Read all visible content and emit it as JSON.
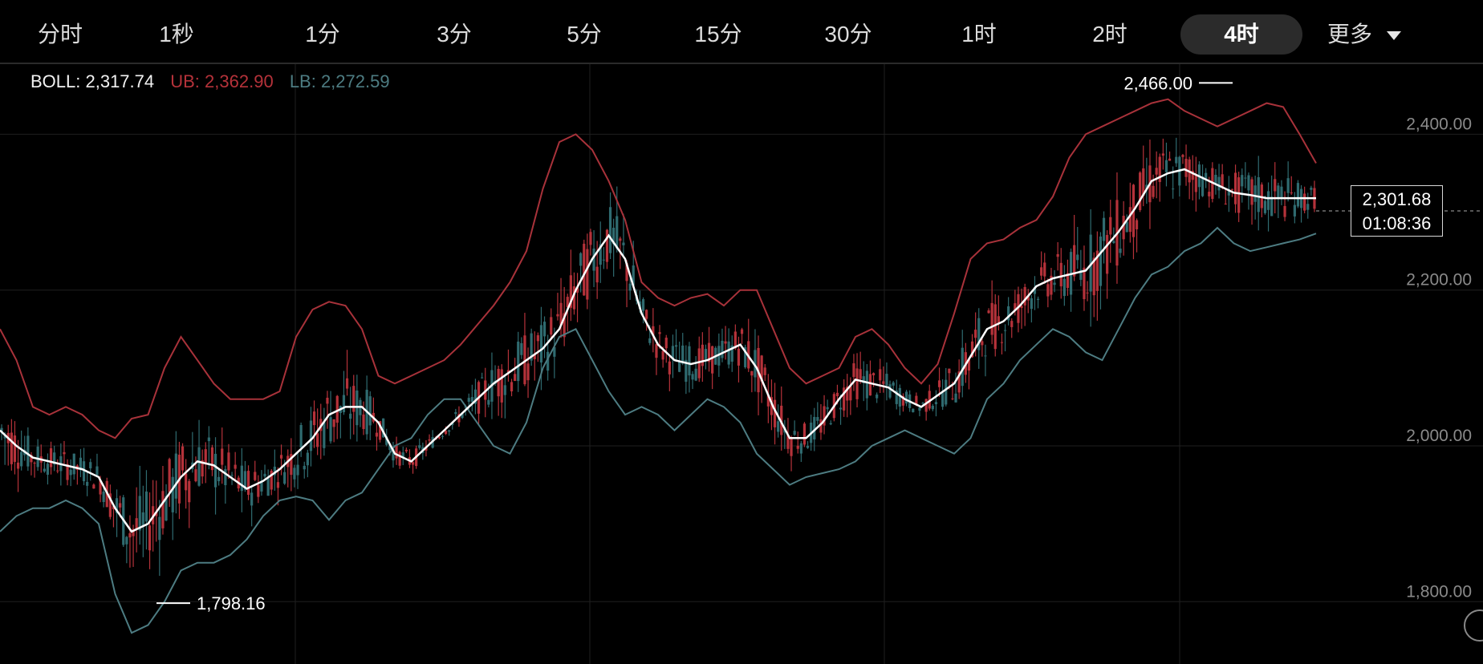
{
  "timeframe_tabs": [
    "分时",
    "1秒",
    "1分",
    "3分",
    "5分",
    "15分",
    "30分",
    "1时",
    "2时",
    "4时"
  ],
  "active_tab": "4时",
  "more_label": "更多",
  "indicator": {
    "boll_label": "BOLL: 2,317.74",
    "ub_label": "UB: 2,362.90",
    "lb_label": "LB: 2,272.59"
  },
  "current_price": {
    "price": "2,301.68",
    "countdown": "01:08:36",
    "value": 2301.68
  },
  "markers": {
    "high": {
      "label": "2,466.00",
      "value": 2466
    },
    "low": {
      "label": "1,798.16",
      "value": 1798.16
    }
  },
  "colors": {
    "up": "#2f6b70",
    "down": "#b5323a",
    "mid": "#ffffff",
    "ub": "#a8323a",
    "lb": "#4d7c82",
    "grid": "#1f1f1f"
  },
  "chart_data": {
    "type": "line",
    "title": "",
    "y_axis": {
      "ticks": [
        "2,400.00",
        "2,200.00",
        "2,000.00",
        "1,800.00"
      ],
      "tick_values": [
        2400,
        2200,
        2000,
        1800
      ],
      "range": [
        1720,
        2490
      ]
    },
    "grid": true,
    "series": [
      {
        "name": "BOLL",
        "x": [
          0,
          5,
          10,
          15,
          20,
          25,
          30,
          35,
          40,
          45,
          50,
          55,
          60,
          65,
          70,
          75,
          80,
          85,
          90,
          95,
          100,
          105,
          110,
          115,
          120,
          125,
          130,
          135,
          140,
          145,
          150,
          155,
          160,
          165,
          170,
          175,
          180,
          185,
          190,
          195,
          200,
          205,
          210,
          215,
          220,
          225,
          230,
          235,
          240,
          245,
          250,
          255,
          260,
          265,
          270,
          275,
          280,
          285,
          290,
          295,
          300,
          305,
          310,
          315,
          320,
          325,
          330,
          335,
          340,
          345,
          350,
          355,
          360,
          365,
          370,
          375,
          380,
          385,
          390,
          395,
          400
        ],
        "values": [
          2020,
          2000,
          1985,
          1980,
          1975,
          1970,
          1960,
          1920,
          1890,
          1900,
          1930,
          1960,
          1980,
          1975,
          1960,
          1945,
          1955,
          1970,
          1990,
          2010,
          2040,
          2050,
          2050,
          2030,
          1990,
          1980,
          2000,
          2020,
          2040,
          2060,
          2080,
          2095,
          2110,
          2125,
          2150,
          2200,
          2240,
          2270,
          2240,
          2170,
          2130,
          2110,
          2105,
          2110,
          2120,
          2130,
          2100,
          2050,
          2010,
          2010,
          2030,
          2060,
          2085,
          2080,
          2075,
          2060,
          2050,
          2065,
          2080,
          2115,
          2150,
          2160,
          2180,
          2205,
          2215,
          2220,
          2225,
          2250,
          2275,
          2305,
          2340,
          2350,
          2355,
          2345,
          2335,
          2325,
          2322,
          2318,
          2318,
          2318,
          2318
        ]
      },
      {
        "name": "UB",
        "x": [
          0,
          5,
          10,
          15,
          20,
          25,
          30,
          35,
          40,
          45,
          50,
          55,
          60,
          65,
          70,
          75,
          80,
          85,
          90,
          95,
          100,
          105,
          110,
          115,
          120,
          125,
          130,
          135,
          140,
          145,
          150,
          155,
          160,
          165,
          170,
          175,
          180,
          185,
          190,
          195,
          200,
          205,
          210,
          215,
          220,
          225,
          230,
          235,
          240,
          245,
          250,
          255,
          260,
          265,
          270,
          275,
          280,
          285,
          290,
          295,
          300,
          305,
          310,
          315,
          320,
          325,
          330,
          335,
          340,
          345,
          350,
          355,
          360,
          365,
          370,
          375,
          380,
          385,
          390,
          395,
          400
        ],
        "values": [
          2150,
          2110,
          2050,
          2040,
          2050,
          2040,
          2020,
          2010,
          2035,
          2040,
          2100,
          2140,
          2110,
          2080,
          2060,
          2060,
          2060,
          2070,
          2140,
          2175,
          2185,
          2180,
          2150,
          2090,
          2080,
          2090,
          2100,
          2110,
          2130,
          2155,
          2180,
          2210,
          2250,
          2330,
          2390,
          2400,
          2380,
          2340,
          2290,
          2210,
          2190,
          2180,
          2190,
          2195,
          2180,
          2200,
          2200,
          2150,
          2100,
          2080,
          2090,
          2100,
          2140,
          2150,
          2130,
          2100,
          2080,
          2105,
          2170,
          2240,
          2260,
          2265,
          2280,
          2290,
          2320,
          2370,
          2400,
          2410,
          2420,
          2430,
          2440,
          2445,
          2430,
          2420,
          2410,
          2420,
          2430,
          2440,
          2435,
          2400,
          2362.9
        ]
      },
      {
        "name": "LB",
        "x": [
          0,
          5,
          10,
          15,
          20,
          25,
          30,
          35,
          40,
          45,
          50,
          55,
          60,
          65,
          70,
          75,
          80,
          85,
          90,
          95,
          100,
          105,
          110,
          115,
          120,
          125,
          130,
          135,
          140,
          145,
          150,
          155,
          160,
          165,
          170,
          175,
          180,
          185,
          190,
          195,
          200,
          205,
          210,
          215,
          220,
          225,
          230,
          235,
          240,
          245,
          250,
          255,
          260,
          265,
          270,
          275,
          280,
          285,
          290,
          295,
          300,
          305,
          310,
          315,
          320,
          325,
          330,
          335,
          340,
          345,
          350,
          355,
          360,
          365,
          370,
          375,
          380,
          385,
          390,
          395,
          400
        ],
        "values": [
          1890,
          1910,
          1920,
          1920,
          1930,
          1920,
          1900,
          1810,
          1760,
          1770,
          1800,
          1840,
          1850,
          1850,
          1860,
          1880,
          1910,
          1930,
          1935,
          1930,
          1905,
          1930,
          1940,
          1970,
          2000,
          2010,
          2040,
          2060,
          2060,
          2030,
          2000,
          1990,
          2030,
          2100,
          2140,
          2150,
          2110,
          2070,
          2040,
          2050,
          2040,
          2020,
          2040,
          2060,
          2050,
          2030,
          1990,
          1970,
          1950,
          1960,
          1965,
          1970,
          1980,
          2000,
          2010,
          2020,
          2010,
          2000,
          1990,
          2010,
          2060,
          2080,
          2110,
          2130,
          2150,
          2140,
          2120,
          2110,
          2150,
          2190,
          2220,
          2230,
          2250,
          2260,
          2280,
          2260,
          2250,
          2255,
          2260,
          2265,
          2272.59
        ]
      }
    ]
  }
}
